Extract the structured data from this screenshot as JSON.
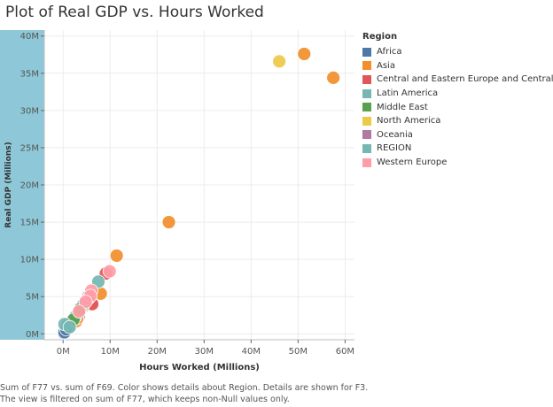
{
  "title": "Plot of Real GDP vs. Hours Worked",
  "caption": {
    "line1": "Sum of F77 vs. sum of F69.  Color shows details about Region.  Details are shown for F3.",
    "line2": "The view is filtered on sum of F77, which keeps non-Null values only."
  },
  "legend": {
    "title": "Region",
    "items": [
      {
        "label": "Africa",
        "color": "#4e79a7"
      },
      {
        "label": "Asia",
        "color": "#f28e2b"
      },
      {
        "label": "Central and Eastern Europe and Central Asia",
        "color": "#e15759"
      },
      {
        "label": "Latin America",
        "color": "#76b7b2"
      },
      {
        "label": "Middle East",
        "color": "#59a14f"
      },
      {
        "label": "North America",
        "color": "#edc948"
      },
      {
        "label": "Oceania",
        "color": "#b07aa1"
      },
      {
        "label": "REGION",
        "color": "#76b7b2"
      },
      {
        "label": "Western Europe",
        "color": "#ff9da7"
      }
    ]
  },
  "chart_data": {
    "type": "scatter",
    "title": "Plot of Real GDP vs. Hours Worked",
    "xlabel": "Hours Worked (Millions)",
    "ylabel": "Real GDP (Millions)",
    "xlim": [
      -4,
      62
    ],
    "ylim": [
      -0.8,
      40.8
    ],
    "x_ticks": [
      0,
      10,
      20,
      30,
      40,
      50,
      60
    ],
    "x_tick_labels": [
      "0M",
      "10M",
      "20M",
      "30M",
      "40M",
      "50M",
      "60M"
    ],
    "y_ticks": [
      0,
      5,
      10,
      15,
      20,
      25,
      30,
      35,
      40
    ],
    "y_tick_labels": [
      "0M",
      "5M",
      "10M",
      "15M",
      "20M",
      "25M",
      "30M",
      "35M",
      "40M"
    ],
    "grid": true,
    "legend_position": "right",
    "y_axis_highlight_color": "#8ec8d8",
    "series": [
      {
        "name": "Africa",
        "color": "#4e79a7",
        "x": [
          0.2,
          0.4,
          0.6,
          0.9,
          1.2,
          1.5,
          1.8,
          2.1,
          2.5,
          2.9,
          3.3,
          1.0,
          0.3,
          0.7
        ],
        "y": [
          0.1,
          0.3,
          0.5,
          0.7,
          0.9,
          1.1,
          1.4,
          1.7,
          2.0,
          2.2,
          2.4,
          1.2,
          0.2,
          0.6
        ]
      },
      {
        "name": "Asia",
        "color": "#f28e2b",
        "x": [
          51.3,
          57.5,
          22.5,
          11.4,
          8.0,
          5.6,
          6.0,
          2.8,
          4.2,
          3.0
        ],
        "y": [
          37.6,
          34.4,
          15.0,
          10.5,
          5.4,
          4.3,
          3.9,
          1.7,
          3.6,
          2.1
        ]
      },
      {
        "name": "Central and Eastern Europe and Central Asia",
        "color": "#e15759",
        "x": [
          9.1,
          6.2
        ],
        "y": [
          8.1,
          4.0
        ]
      },
      {
        "name": "Latin America",
        "color": "#76b7b2",
        "x": [
          7.5,
          5.3,
          4.3,
          3.6,
          2.6
        ],
        "y": [
          7.0,
          5.0,
          3.9,
          3.1,
          2.3
        ]
      },
      {
        "name": "Middle East",
        "color": "#59a14f",
        "x": [
          3.6,
          2.2
        ],
        "y": [
          3.3,
          1.9
        ]
      },
      {
        "name": "North America",
        "color": "#edc948",
        "x": [
          46.0
        ],
        "y": [
          36.6
        ]
      },
      {
        "name": "Oceania",
        "color": "#b07aa1",
        "x": [
          5.4
        ],
        "y": [
          4.8
        ]
      },
      {
        "name": "REGION",
        "color": "#76b7b2",
        "x": [
          0.3,
          1.4
        ],
        "y": [
          1.3,
          0.9
        ]
      },
      {
        "name": "Western Europe",
        "color": "#ff9da7",
        "x": [
          9.9,
          6.0,
          5.8,
          4.8,
          3.4
        ],
        "y": [
          8.4,
          5.8,
          5.1,
          4.3,
          3.0
        ]
      }
    ]
  }
}
